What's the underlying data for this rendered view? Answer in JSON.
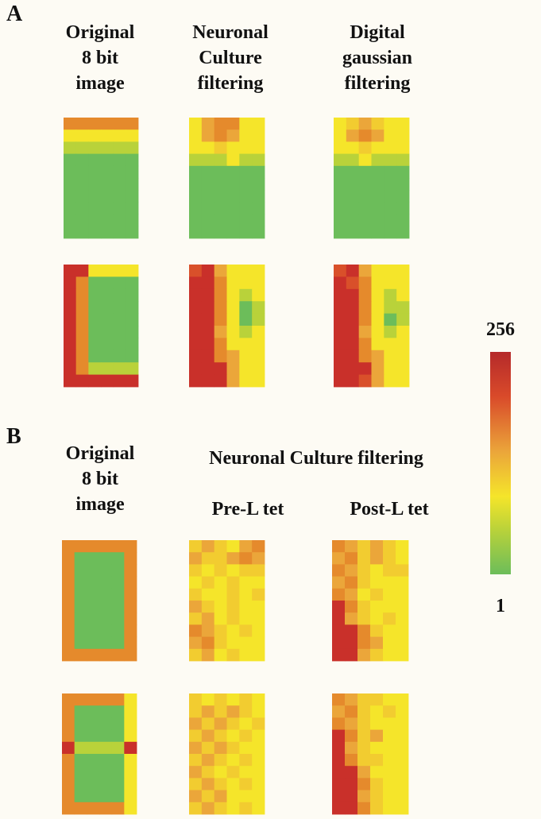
{
  "panel_a": {
    "label": "A",
    "columns": [
      {
        "lines": [
          "Original",
          "8 bit",
          "image"
        ]
      },
      {
        "lines": [
          "Neuronal",
          "Culture",
          "filtering"
        ]
      },
      {
        "lines": [
          "Digital",
          "gaussian",
          "filtering"
        ]
      }
    ]
  },
  "panel_b": {
    "label": "B",
    "original": {
      "lines": [
        "Original",
        "8 bit",
        "image"
      ]
    },
    "group_heading": "Neuronal Culture filtering",
    "conditions": [
      "Pre-L tet",
      "Post-L tet"
    ]
  },
  "colorbar": {
    "max_label": "256",
    "min_label": "1"
  }
}
